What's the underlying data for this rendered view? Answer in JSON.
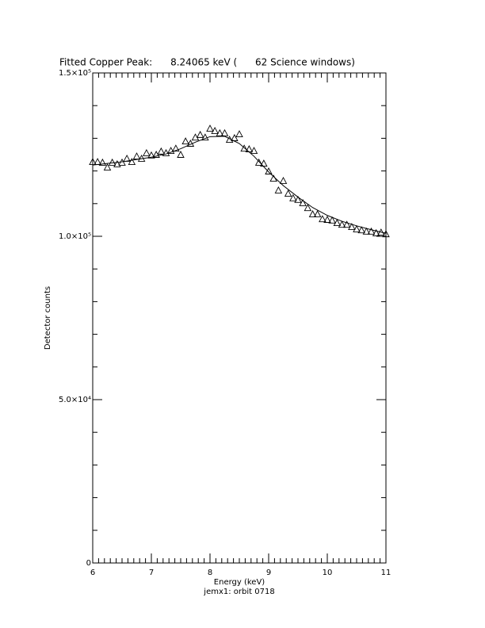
{
  "chart_data": {
    "type": "scatter",
    "title": "Fitted Copper Peak:      8.24065 keV (      62 Science windows)",
    "xlabel": "Energy (keV)",
    "ylabel": "Detector counts",
    "subtitle": "jemx1: orbit 0718",
    "xlim": [
      6,
      11
    ],
    "ylim": [
      0,
      150000
    ],
    "xticks": [
      6,
      7,
      8,
      9,
      10,
      11
    ],
    "yticks": [
      0,
      {
        "value": 50000,
        "label": "5.0×10⁴"
      },
      {
        "value": 100000,
        "label": "1.0×10⁵"
      },
      {
        "value": 150000,
        "label": "1.5×10⁵"
      }
    ],
    "series": [
      {
        "marker": "triangle",
        "color": "#000000",
        "x": [
          6.0,
          6.083,
          6.167,
          6.25,
          6.333,
          6.417,
          6.5,
          6.583,
          6.667,
          6.75,
          6.833,
          6.917,
          7.0,
          7.083,
          7.167,
          7.25,
          7.333,
          7.417,
          7.5,
          7.583,
          7.667,
          7.75,
          7.833,
          7.917,
          8.0,
          8.083,
          8.167,
          8.25,
          8.333,
          8.417,
          8.5,
          8.583,
          8.667,
          8.75,
          8.833,
          8.917,
          9.0,
          9.083,
          9.167,
          9.25,
          9.333,
          9.417,
          9.5,
          9.583,
          9.667,
          9.75,
          9.833,
          9.917,
          10.0,
          10.083,
          10.167,
          10.25,
          10.333,
          10.417,
          10.5,
          10.583,
          10.667,
          10.75,
          10.833,
          10.917,
          11.0
        ],
        "values": [
          122800,
          122800,
          122600,
          121100,
          122600,
          122100,
          122600,
          123800,
          122800,
          124500,
          123800,
          125500,
          124800,
          125000,
          126000,
          125500,
          126200,
          126900,
          125000,
          129100,
          128400,
          130300,
          131100,
          130300,
          133000,
          132300,
          131600,
          131600,
          129600,
          130100,
          131300,
          126900,
          126700,
          126200,
          122600,
          122300,
          119900,
          117700,
          114100,
          117000,
          113100,
          111700,
          111200,
          110200,
          108700,
          106800,
          106800,
          105300,
          105100,
          104900,
          104100,
          103600,
          103600,
          102900,
          102200,
          101900,
          101500,
          101500,
          101000,
          101200,
          100700
        ]
      },
      {
        "type": "line",
        "color": "#000000",
        "x": [
          6,
          6.25,
          6.5,
          6.75,
          7,
          7.25,
          7.5,
          7.75,
          8,
          8.25,
          8.5,
          8.75,
          9,
          9.25,
          9.5,
          9.75,
          10,
          10.25,
          10.5,
          10.75,
          11
        ],
        "values": [
          121800,
          122300,
          122800,
          123500,
          124200,
          125200,
          126800,
          128800,
          130500,
          130600,
          128400,
          124500,
          119700,
          115500,
          112000,
          108800,
          106400,
          104600,
          103200,
          102000,
          100900
        ]
      }
    ]
  }
}
